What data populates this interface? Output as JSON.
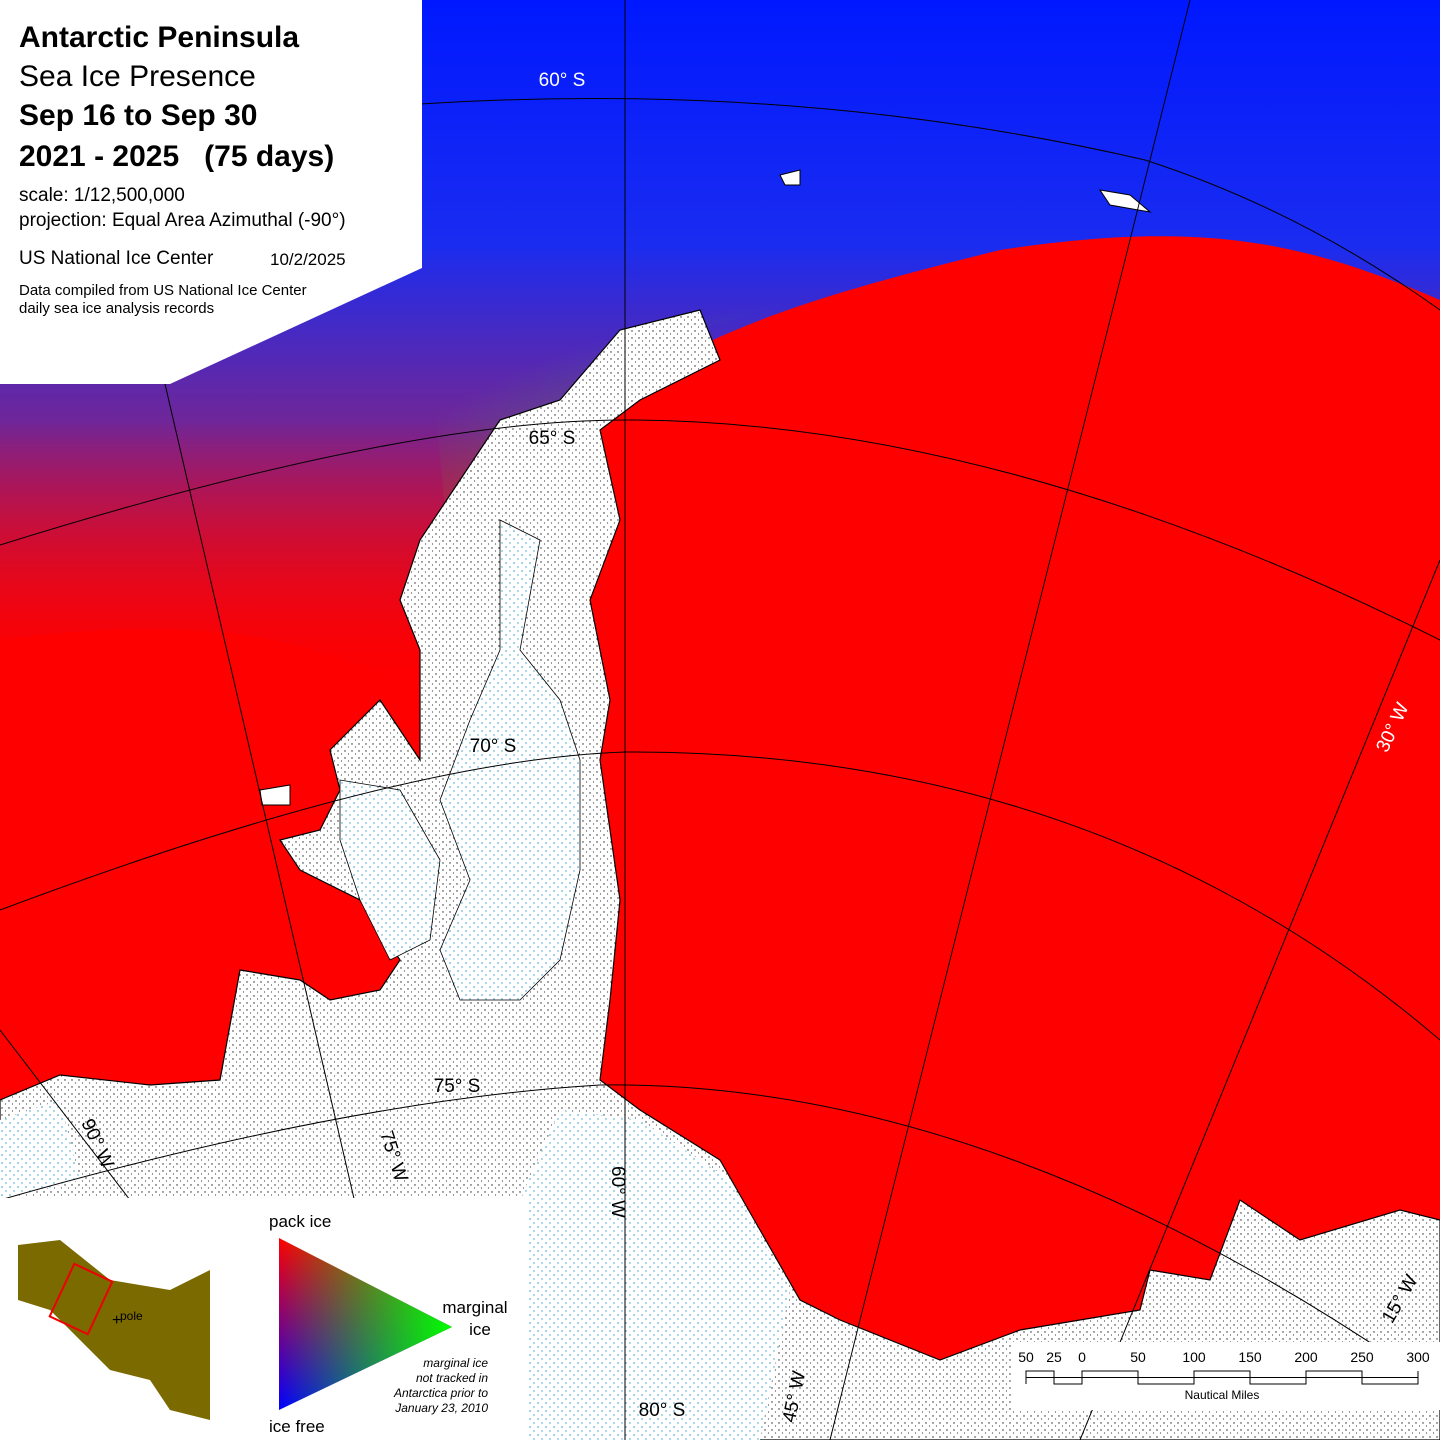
{
  "header": {
    "title": "Antarctic Peninsula",
    "subtitle": "Sea Ice Presence",
    "period": "Sep 16 to Sep 30",
    "years": "2021 - 2025   (75 days)",
    "scale": "scale: 1/12,500,000",
    "projection": "projection: Equal Area Azimuthal (-90°)",
    "agency": "US National Ice Center",
    "date": "10/2/2025",
    "note": [
      "Data compiled from US National Ice Center",
      "daily sea ice analysis records"
    ]
  },
  "graticule": {
    "lat_labels": [
      "60° S",
      "65° S",
      "70° S",
      "75° S",
      "80° S"
    ],
    "lon_labels": [
      "90° W",
      "75° W",
      "60° W",
      "45° W",
      "30° W",
      "15° W"
    ]
  },
  "legend": {
    "top": "pack ice",
    "right": [
      "marginal",
      "ice"
    ],
    "bottom": "ice free",
    "note": [
      "marginal ice",
      "not tracked in",
      "Antarctica prior to",
      "January 23, 2010"
    ],
    "inset_label": "pole"
  },
  "scale_bar": {
    "ticks": [
      {
        "value": -50,
        "label": "50"
      },
      {
        "value": -25,
        "label": "25"
      },
      0,
      50,
      100,
      150,
      200,
      250,
      300
    ],
    "unit": "Nautical Miles"
  }
}
